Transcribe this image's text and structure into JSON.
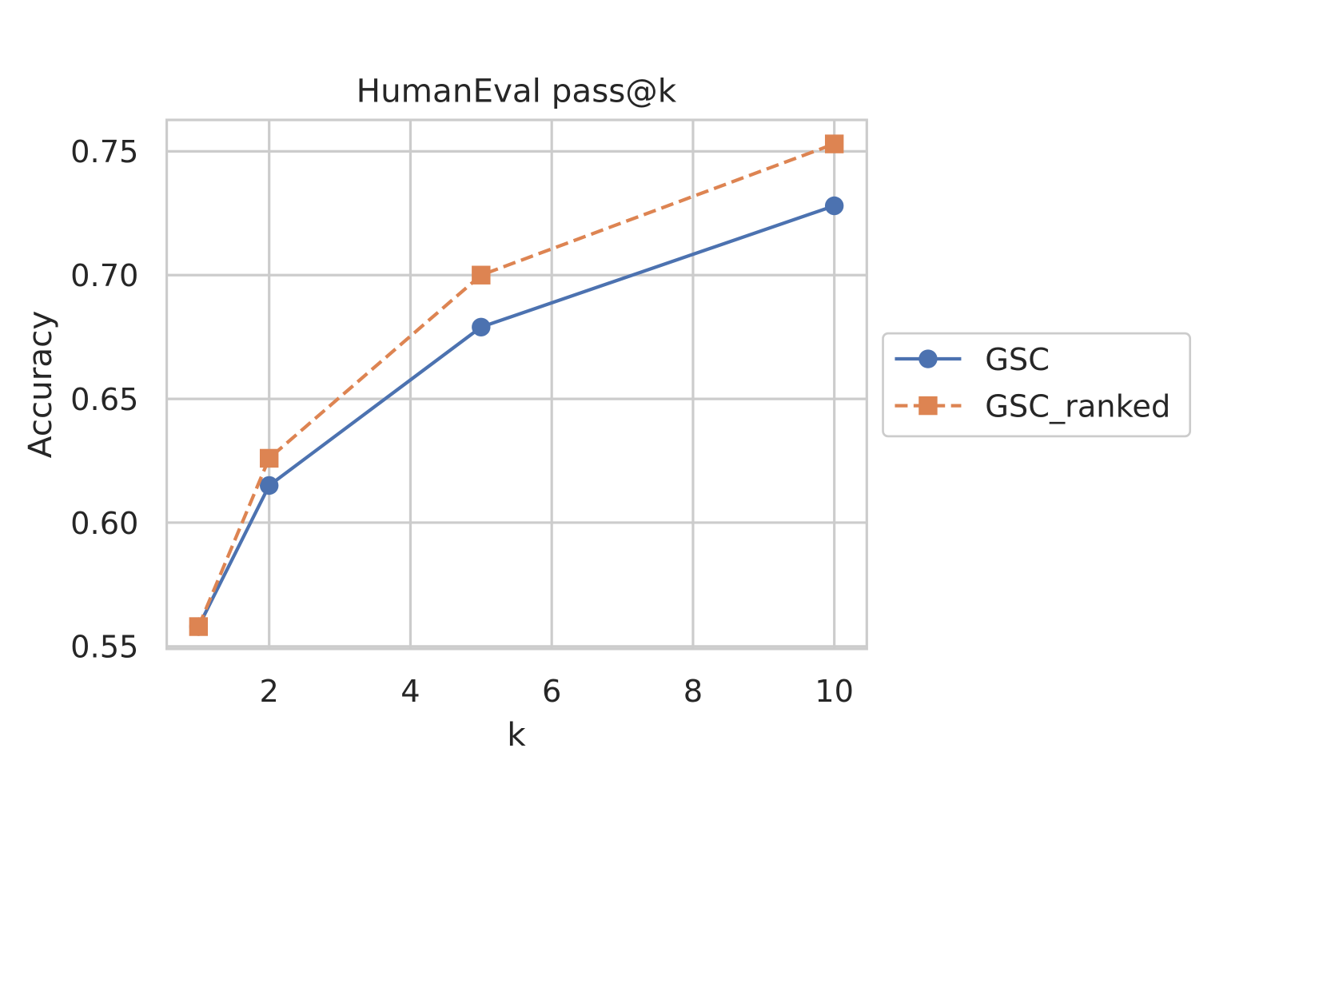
{
  "chart_data": {
    "type": "line",
    "title": "HumanEval pass@k",
    "xlabel": "k",
    "ylabel": "Accuracy",
    "x": [
      1,
      2,
      5,
      10
    ],
    "xlim": [
      0.55,
      10.46
    ],
    "ylim": [
      0.549,
      0.7627
    ],
    "xticks": [
      2,
      4,
      6,
      8,
      10
    ],
    "xtick_labels": [
      "2",
      "4",
      "6",
      "8",
      "10"
    ],
    "yticks": [
      0.55,
      0.6,
      0.65,
      0.7,
      0.75
    ],
    "ytick_labels": [
      "0.55",
      "0.60",
      "0.65",
      "0.70",
      "0.75"
    ],
    "grid": true,
    "legend_placement": "outside-right",
    "series": [
      {
        "name": "GSC",
        "values": [
          0.558,
          0.615,
          0.679,
          0.728
        ],
        "color": "#4c72b0",
        "marker": "circle",
        "linestyle": "solid"
      },
      {
        "name": "GSC_ranked",
        "values": [
          0.558,
          0.626,
          0.7,
          0.753
        ],
        "color": "#dd8452",
        "marker": "square",
        "linestyle": "dashed"
      }
    ]
  }
}
